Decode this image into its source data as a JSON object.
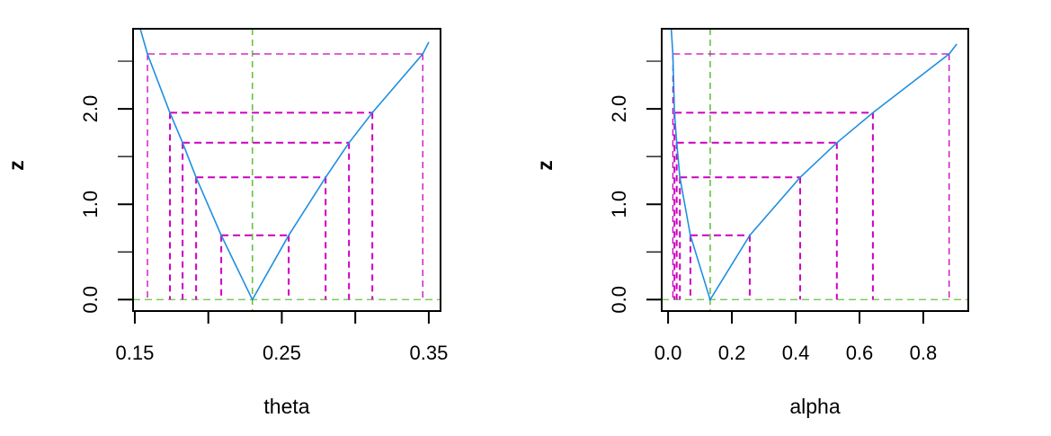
{
  "colors": {
    "curve": "#1f8fe0",
    "levels": "#cc00c0",
    "reference": "#66c244",
    "axis": "#000000"
  },
  "chart_data": [
    {
      "type": "line",
      "title": "",
      "xlabel": "theta",
      "ylabel": "z",
      "xlim": [
        0.1488,
        0.358
      ],
      "ylim": [
        -0.12,
        2.84
      ],
      "xticks": [
        0.15,
        0.2,
        0.25,
        0.3,
        0.35
      ],
      "xtick_labels": [
        "0.15",
        "",
        "0.25",
        "",
        "0.35"
      ],
      "yticks": [
        0,
        0.5,
        1,
        1.5,
        2,
        2.5
      ],
      "ytick_labels": [
        "0.0",
        "",
        "1.0",
        "",
        "2.0",
        ""
      ],
      "mle": 0.23,
      "levels": [
        2.576,
        1.96,
        1.645,
        1.282,
        0.674
      ],
      "lower_bounds": [
        0.1586,
        0.1739,
        0.1825,
        0.1917,
        0.2088
      ],
      "upper_bounds": [
        0.3459,
        0.3116,
        0.2957,
        0.2798,
        0.2547
      ],
      "curve": {
        "x": [
          0.1537,
          0.1586,
          0.1739,
          0.1825,
          0.1917,
          0.2088,
          0.23,
          0.2547,
          0.2798,
          0.2957,
          0.3116,
          0.3459,
          0.35
        ],
        "y": [
          2.84,
          2.576,
          1.96,
          1.645,
          1.282,
          0.674,
          0.0,
          0.674,
          1.282,
          1.645,
          1.96,
          2.576,
          2.7
        ]
      }
    },
    {
      "type": "line",
      "title": "",
      "xlabel": "alpha",
      "ylabel": "z",
      "xlim": [
        -0.02,
        0.941
      ],
      "ylim": [
        -0.12,
        2.84
      ],
      "xticks": [
        0.0,
        0.2,
        0.4,
        0.6,
        0.8
      ],
      "xtick_labels": [
        "0.0",
        "0.2",
        "0.4",
        "0.6",
        "0.8"
      ],
      "yticks": [
        0,
        0.5,
        1,
        1.5,
        2,
        2.5
      ],
      "ytick_labels": [
        "0.0",
        "",
        "1.0",
        "",
        "2.0",
        ""
      ],
      "mle": 0.132,
      "levels": [
        2.576,
        1.96,
        1.645,
        1.282,
        0.674
      ],
      "lower_bounds": [
        0.015,
        0.02,
        0.027,
        0.037,
        0.07
      ],
      "upper_bounds": [
        0.881,
        0.642,
        0.529,
        0.414,
        0.256
      ],
      "curve": {
        "x": [
          0.01,
          0.015,
          0.02,
          0.027,
          0.037,
          0.07,
          0.132,
          0.256,
          0.414,
          0.529,
          0.642,
          0.881,
          0.905
        ],
        "y": [
          2.84,
          2.576,
          1.96,
          1.645,
          1.282,
          0.674,
          0.0,
          0.674,
          1.282,
          1.645,
          1.96,
          2.576,
          2.68
        ]
      }
    }
  ]
}
